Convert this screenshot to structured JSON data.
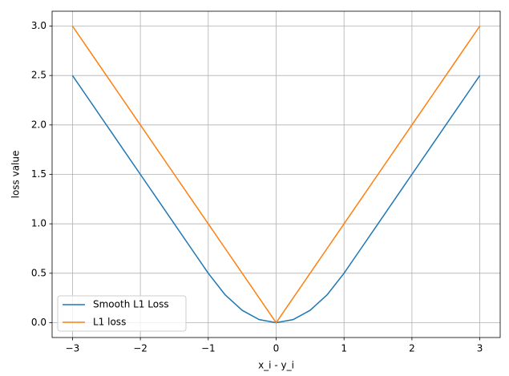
{
  "chart_data": {
    "type": "line",
    "xlabel": "x_i - y_i",
    "ylabel": "loss value",
    "x": [
      -3,
      -2.75,
      -2.5,
      -2.25,
      -2,
      -1.75,
      -1.5,
      -1.25,
      -1,
      -0.75,
      -0.5,
      -0.25,
      0,
      0.25,
      0.5,
      0.75,
      1,
      1.25,
      1.5,
      1.75,
      2,
      2.25,
      2.5,
      2.75,
      3
    ],
    "series": [
      {
        "name": "Smooth L1 Loss",
        "color": "#1f77b4",
        "values": [
          2.5,
          2.25,
          2,
          1.75,
          1.5,
          1.25,
          1,
          0.75,
          0.5,
          0.28125,
          0.125,
          0.03125,
          0,
          0.03125,
          0.125,
          0.28125,
          0.5,
          0.75,
          1,
          1.25,
          1.5,
          1.75,
          2,
          2.25,
          2.5
        ]
      },
      {
        "name": "L1 loss",
        "color": "#ff7f0e",
        "values": [
          3,
          2.75,
          2.5,
          2.25,
          2,
          1.75,
          1.5,
          1.25,
          1,
          0.75,
          0.5,
          0.25,
          0,
          0.25,
          0.5,
          0.75,
          1,
          1.25,
          1.5,
          1.75,
          2,
          2.25,
          2.5,
          2.75,
          3
        ]
      }
    ],
    "xlim": [
      -3.3,
      3.3
    ],
    "ylim": [
      -0.15,
      3.15
    ],
    "xticks": [
      {
        "value": -3,
        "label": "−3"
      },
      {
        "value": -2,
        "label": "−2"
      },
      {
        "value": -1,
        "label": "−1"
      },
      0,
      1,
      2,
      3
    ],
    "yticks": [
      {
        "value": 0,
        "label": "0.0"
      },
      0.5,
      {
        "value": 1,
        "label": "1.0"
      },
      1.5,
      {
        "value": 2,
        "label": "2.0"
      },
      2.5,
      {
        "value": 3,
        "label": "3.0"
      }
    ],
    "grid": true,
    "legend": "lower left"
  }
}
